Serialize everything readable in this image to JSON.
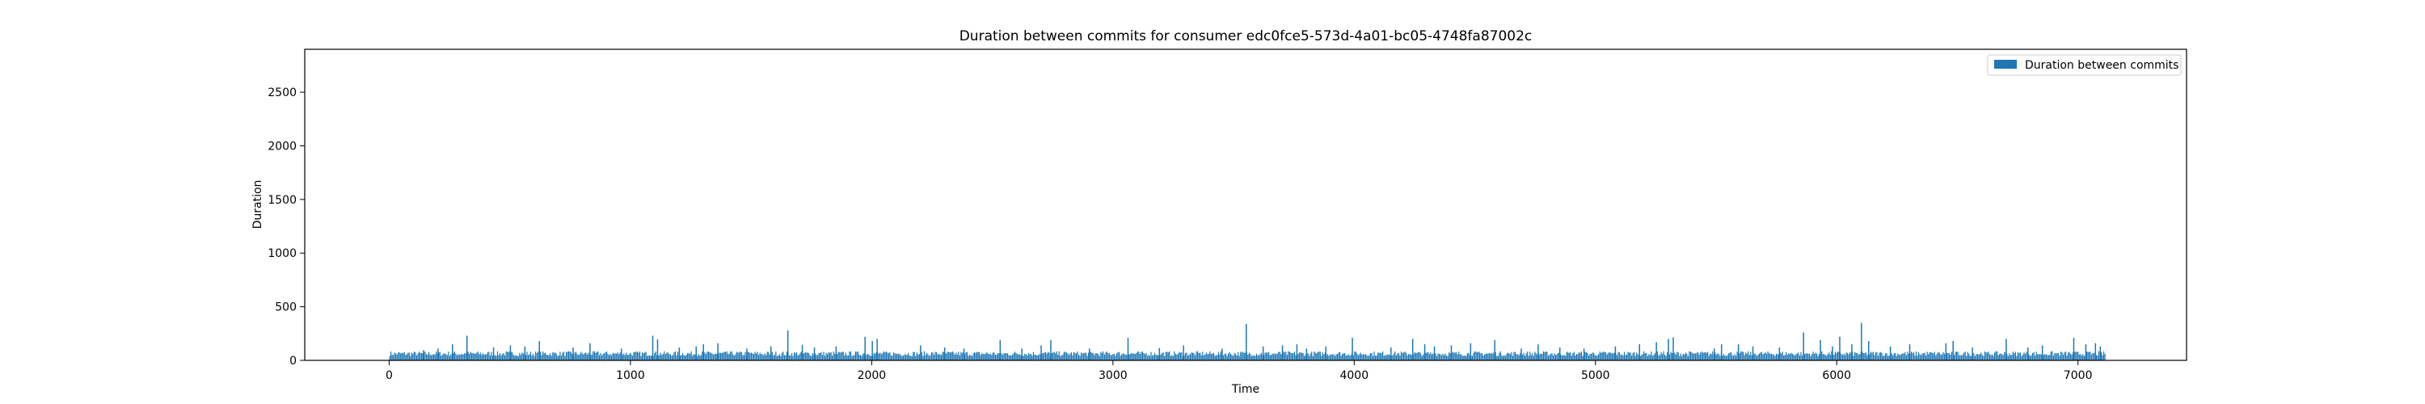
{
  "chart_data": {
    "type": "bar",
    "title": "Duration between commits for consumer edc0fce5-573d-4a01-bc05-4748fa87002c",
    "xlabel": "Time",
    "ylabel": "Duration",
    "xlim": [
      -350,
      7450
    ],
    "ylim": [
      0,
      2900
    ],
    "xticks": [
      0,
      1000,
      2000,
      3000,
      4000,
      5000,
      6000,
      7000
    ],
    "yticks": [
      0,
      500,
      1000,
      1500,
      2000,
      2500
    ],
    "grid": false,
    "legend": "upper-right",
    "color": "#1f77b4",
    "baseline_range": [
      40,
      85
    ],
    "x_range": [
      0,
      7110
    ],
    "series": [
      {
        "name": "Duration between commits",
        "spikes": [
          {
            "x": 140,
            "y": 95
          },
          {
            "x": 200,
            "y": 110
          },
          {
            "x": 260,
            "y": 150
          },
          {
            "x": 320,
            "y": 230
          },
          {
            "x": 430,
            "y": 120
          },
          {
            "x": 500,
            "y": 140
          },
          {
            "x": 560,
            "y": 130
          },
          {
            "x": 620,
            "y": 180
          },
          {
            "x": 760,
            "y": 120
          },
          {
            "x": 830,
            "y": 160
          },
          {
            "x": 960,
            "y": 110
          },
          {
            "x": 1090,
            "y": 230
          },
          {
            "x": 1110,
            "y": 195
          },
          {
            "x": 1200,
            "y": 120
          },
          {
            "x": 1270,
            "y": 130
          },
          {
            "x": 1300,
            "y": 150
          },
          {
            "x": 1360,
            "y": 160
          },
          {
            "x": 1480,
            "y": 110
          },
          {
            "x": 1580,
            "y": 130
          },
          {
            "x": 1650,
            "y": 280
          },
          {
            "x": 1710,
            "y": 145
          },
          {
            "x": 1760,
            "y": 120
          },
          {
            "x": 1850,
            "y": 130
          },
          {
            "x": 1970,
            "y": 220
          },
          {
            "x": 2000,
            "y": 180
          },
          {
            "x": 2020,
            "y": 200
          },
          {
            "x": 2200,
            "y": 140
          },
          {
            "x": 2300,
            "y": 120
          },
          {
            "x": 2380,
            "y": 110
          },
          {
            "x": 2530,
            "y": 190
          },
          {
            "x": 2620,
            "y": 110
          },
          {
            "x": 2700,
            "y": 140
          },
          {
            "x": 2740,
            "y": 190
          },
          {
            "x": 2900,
            "y": 110
          },
          {
            "x": 3060,
            "y": 210
          },
          {
            "x": 3190,
            "y": 115
          },
          {
            "x": 3290,
            "y": 140
          },
          {
            "x": 3450,
            "y": 110
          },
          {
            "x": 3550,
            "y": 340
          },
          {
            "x": 3620,
            "y": 130
          },
          {
            "x": 3700,
            "y": 140
          },
          {
            "x": 3760,
            "y": 150
          },
          {
            "x": 3800,
            "y": 110
          },
          {
            "x": 3880,
            "y": 130
          },
          {
            "x": 3990,
            "y": 210
          },
          {
            "x": 4150,
            "y": 120
          },
          {
            "x": 4240,
            "y": 200
          },
          {
            "x": 4290,
            "y": 150
          },
          {
            "x": 4330,
            "y": 130
          },
          {
            "x": 4400,
            "y": 140
          },
          {
            "x": 4480,
            "y": 160
          },
          {
            "x": 4580,
            "y": 190
          },
          {
            "x": 4690,
            "y": 110
          },
          {
            "x": 4760,
            "y": 150
          },
          {
            "x": 4850,
            "y": 120
          },
          {
            "x": 4950,
            "y": 110
          },
          {
            "x": 5080,
            "y": 130
          },
          {
            "x": 5180,
            "y": 150
          },
          {
            "x": 5250,
            "y": 170
          },
          {
            "x": 5300,
            "y": 200
          },
          {
            "x": 5320,
            "y": 215
          },
          {
            "x": 5490,
            "y": 110
          },
          {
            "x": 5520,
            "y": 150
          },
          {
            "x": 5590,
            "y": 150
          },
          {
            "x": 5650,
            "y": 130
          },
          {
            "x": 5760,
            "y": 120
          },
          {
            "x": 5860,
            "y": 260
          },
          {
            "x": 5930,
            "y": 190
          },
          {
            "x": 5980,
            "y": 130
          },
          {
            "x": 6010,
            "y": 220
          },
          {
            "x": 6060,
            "y": 150
          },
          {
            "x": 6100,
            "y": 350
          },
          {
            "x": 6130,
            "y": 180
          },
          {
            "x": 6220,
            "y": 130
          },
          {
            "x": 6300,
            "y": 150
          },
          {
            "x": 6450,
            "y": 160
          },
          {
            "x": 6480,
            "y": 180
          },
          {
            "x": 6560,
            "y": 120
          },
          {
            "x": 6700,
            "y": 200
          },
          {
            "x": 6790,
            "y": 120
          },
          {
            "x": 6850,
            "y": 140
          },
          {
            "x": 6980,
            "y": 210
          },
          {
            "x": 7030,
            "y": 150
          },
          {
            "x": 7070,
            "y": 160
          },
          {
            "x": 7090,
            "y": 130
          }
        ]
      }
    ]
  }
}
